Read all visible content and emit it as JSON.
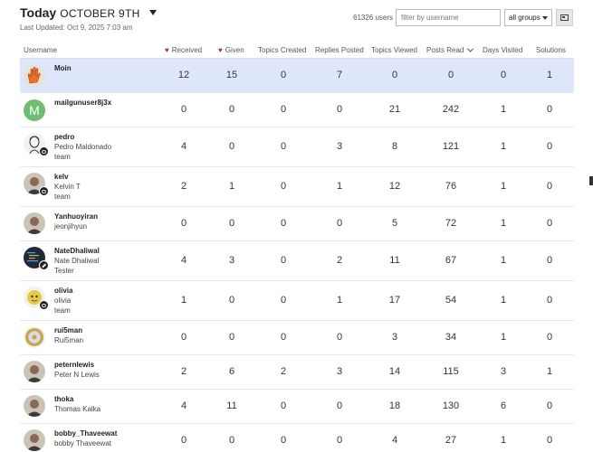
{
  "header": {
    "today": "Today",
    "date": "OCTOBER 9TH",
    "last_updated": "Last Updated: Oct 9, 2025 7:03 am"
  },
  "toolbar": {
    "users_count": "61326 users",
    "filter_placeholder": "filter by username",
    "groups_selected": "all groups"
  },
  "columns": {
    "username": "Username",
    "received": "Received",
    "given": "Given",
    "topics_created": "Topics Created",
    "replies_posted": "Replies Posted",
    "topics_viewed": "Topics Viewed",
    "posts_read": "Posts Read",
    "days_visited": "Days Visited",
    "solutions": "Solutions"
  },
  "rows": [
    {
      "username": "Moin",
      "name": "",
      "title": "",
      "received": "12",
      "given": "15",
      "topics_created": "0",
      "replies_posted": "7",
      "topics_viewed": "0",
      "posts_read": "0",
      "days_visited": "0",
      "solutions": "1",
      "avatar": "hand-icon",
      "highlight": true
    },
    {
      "username": "mailgunuser8j3x",
      "name": "",
      "title": "",
      "received": "0",
      "given": "0",
      "topics_created": "0",
      "replies_posted": "0",
      "topics_viewed": "21",
      "posts_read": "242",
      "days_visited": "1",
      "solutions": "0",
      "avatar": "letter-m",
      "avatar_letter": "M",
      "avatar_color": "#6fbe6f"
    },
    {
      "username": "pedro",
      "name": "Pedro Maldonado",
      "title": "team",
      "received": "4",
      "given": "0",
      "topics_created": "0",
      "replies_posted": "3",
      "topics_viewed": "8",
      "posts_read": "121",
      "days_visited": "1",
      "solutions": "0",
      "avatar": "sketch-portrait",
      "flair": "chat"
    },
    {
      "username": "kelv",
      "name": "Kelvin T",
      "title": "team",
      "received": "2",
      "given": "1",
      "topics_created": "0",
      "replies_posted": "1",
      "topics_viewed": "12",
      "posts_read": "76",
      "days_visited": "1",
      "solutions": "0",
      "avatar": "photo-portrait",
      "flair": "chat"
    },
    {
      "username": "Yanhuoyiran",
      "name": "jeonjihyun",
      "title": "",
      "received": "0",
      "given": "0",
      "topics_created": "0",
      "replies_posted": "0",
      "topics_viewed": "5",
      "posts_read": "72",
      "days_visited": "1",
      "solutions": "0",
      "avatar": "photo-portrait"
    },
    {
      "username": "NateDhaliwal",
      "name": "Nate Dhaliwal",
      "title": "Tester",
      "received": "4",
      "given": "3",
      "topics_created": "0",
      "replies_posted": "2",
      "topics_viewed": "11",
      "posts_read": "67",
      "days_visited": "1",
      "solutions": "0",
      "avatar": "code-screen",
      "flair": "pencil"
    },
    {
      "username": "olivia",
      "name": "olivia",
      "title": "team",
      "received": "1",
      "given": "0",
      "topics_created": "0",
      "replies_posted": "1",
      "topics_viewed": "17",
      "posts_read": "54",
      "days_visited": "1",
      "solutions": "0",
      "avatar": "yellow-character",
      "flair": "chat"
    },
    {
      "username": "rui5man",
      "name": "Rui5man",
      "title": "",
      "received": "0",
      "given": "0",
      "topics_created": "0",
      "replies_posted": "0",
      "topics_viewed": "3",
      "posts_read": "34",
      "days_visited": "1",
      "solutions": "0",
      "avatar": "coin"
    },
    {
      "username": "peternlewis",
      "name": "Peter N Lewis",
      "title": "",
      "received": "2",
      "given": "6",
      "topics_created": "2",
      "replies_posted": "3",
      "topics_viewed": "14",
      "posts_read": "115",
      "days_visited": "3",
      "solutions": "1",
      "avatar": "photo-portrait"
    },
    {
      "username": "thoka",
      "name": "Thomas Kalka",
      "title": "",
      "received": "4",
      "given": "11",
      "topics_created": "0",
      "replies_posted": "0",
      "topics_viewed": "18",
      "posts_read": "130",
      "days_visited": "6",
      "solutions": "0",
      "avatar": "photo-portrait"
    },
    {
      "username": "bobby_Thaveewat",
      "name": "bobby Thaveewat",
      "title": "",
      "received": "0",
      "given": "0",
      "topics_created": "0",
      "replies_posted": "0",
      "topics_viewed": "4",
      "posts_read": "27",
      "days_visited": "1",
      "solutions": "0",
      "avatar": "photo-portrait"
    }
  ],
  "colors": {
    "highlight_row": "#dde6fa",
    "heart": "#a12c5e"
  }
}
